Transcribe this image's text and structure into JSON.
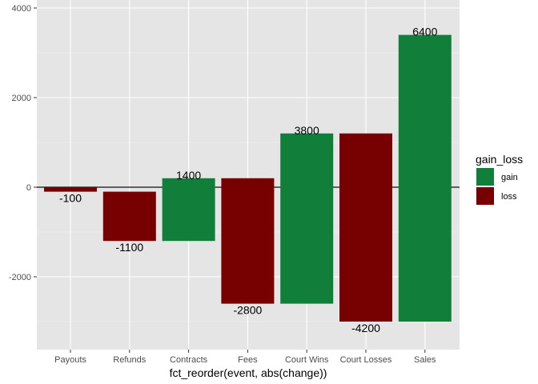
{
  "chart_data": {
    "type": "bar",
    "subtype": "waterfall",
    "xlabel": "fct_reorder(event, abs(change))",
    "ylabel": "",
    "ylim": [
      -3600,
      4000
    ],
    "yticks": [
      -2000,
      0,
      2000,
      4000
    ],
    "categories": [
      "Payouts",
      "Refunds",
      "Contracts",
      "Fees",
      "Court Wins",
      "Court Losses",
      "Sales"
    ],
    "bars": [
      {
        "event": "Payouts",
        "start": 0,
        "end": -100,
        "label": "-100",
        "gain_loss": "loss"
      },
      {
        "event": "Refunds",
        "start": -100,
        "end": -1200,
        "label": "-1100",
        "gain_loss": "loss"
      },
      {
        "event": "Contracts",
        "start": -1200,
        "end": 200,
        "label": "1400",
        "gain_loss": "gain"
      },
      {
        "event": "Fees",
        "start": 200,
        "end": -2600,
        "label": "-2800",
        "gain_loss": "loss"
      },
      {
        "event": "Court Wins",
        "start": -2600,
        "end": 1200,
        "label": "3800",
        "gain_loss": "gain"
      },
      {
        "event": "Court Losses",
        "start": 1200,
        "end": -3000,
        "label": "-4200",
        "gain_loss": "loss"
      },
      {
        "event": "Sales",
        "start": -3000,
        "end": 3400,
        "label": "6400",
        "gain_loss": "gain"
      }
    ],
    "reference_line": 0,
    "grid": true,
    "legend": {
      "title": "gain_loss",
      "position": "right",
      "entries": [
        {
          "name": "gain",
          "color": "#117f3a"
        },
        {
          "name": "loss",
          "color": "#770000"
        }
      ]
    },
    "colors": {
      "gain": "#117f3a",
      "loss": "#770000",
      "panel": "#e5e5e5",
      "grid": "#ffffff"
    }
  }
}
